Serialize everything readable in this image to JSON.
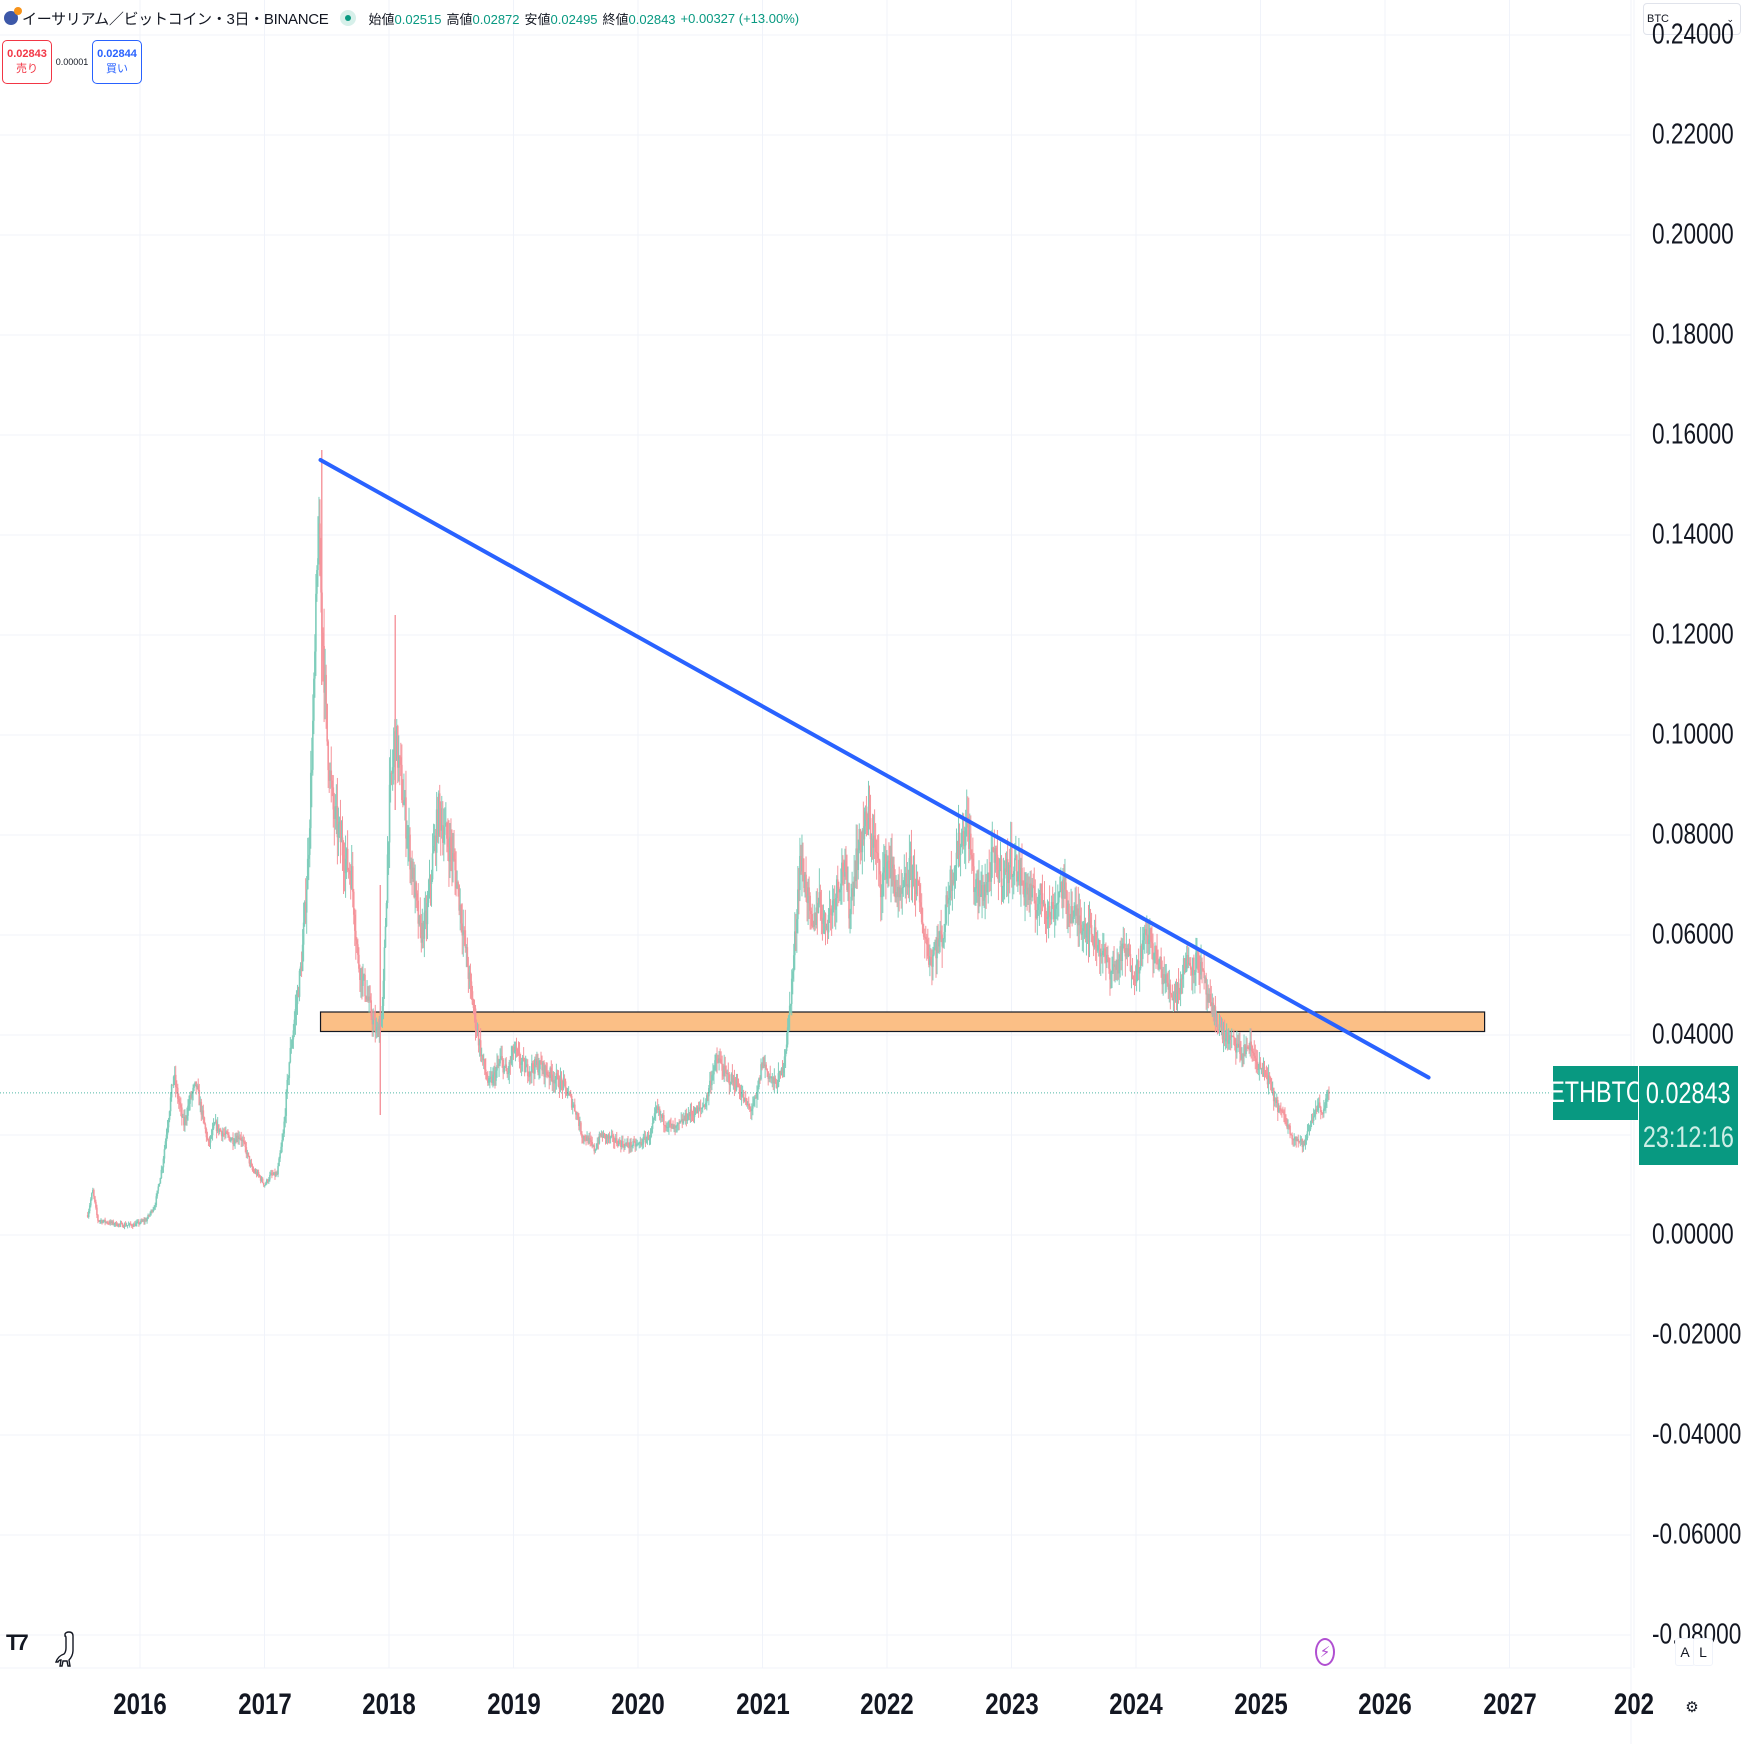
{
  "header": {
    "symbol_title": "イーサリアム／ビットコイン・3日・BINANCE",
    "ohlc": [
      {
        "label": "始値",
        "value": "0.02515"
      },
      {
        "label": "高値",
        "value": "0.02872"
      },
      {
        "label": "安値",
        "value": "0.02495"
      },
      {
        "label": "終値",
        "value": "0.02843"
      }
    ],
    "change": "+0.00327 (+13.00%)",
    "market_status_icon": "market-open-dot"
  },
  "trade": {
    "sell_price": "0.02843",
    "sell_label": "売り",
    "spread": "0.00001",
    "buy_price": "0.02844",
    "buy_label": "買い"
  },
  "currency_select": {
    "value": "BTC"
  },
  "price_tag": {
    "symbol": "ETHBTC",
    "price": "0.02843",
    "countdown": "23:12:16"
  },
  "bottom_controls": {
    "auto_label": "A",
    "log_label": "L"
  },
  "colors": {
    "up": "#089981",
    "down": "#f23645",
    "up_candle": "#7fcdbb",
    "down_candle": "#f5959c",
    "trendline": "#2962ff",
    "zone_fill": "#fbbf86",
    "grid": "#f0f3fa"
  },
  "chart_data": {
    "type": "candlestick",
    "title": "イーサリアム／ビットコイン・3日・BINANCE",
    "xlabel": "",
    "ylabel": "BTC",
    "ylim": [
      -0.08,
      0.24
    ],
    "yticks": [
      "0.24000",
      "0.22000",
      "0.20000",
      "0.18000",
      "0.16000",
      "0.14000",
      "0.12000",
      "0.10000",
      "0.08000",
      "0.06000",
      "0.04000",
      "0.02000",
      "0.00000",
      "-0.02000",
      "-0.04000",
      "-0.06000",
      "-0.08000"
    ],
    "xticks": [
      "2016",
      "2017",
      "2018",
      "2019",
      "2020",
      "2021",
      "2022",
      "2023",
      "2024",
      "2025",
      "2026",
      "2027",
      "202"
    ],
    "grid": true,
    "current_price": 0.02843,
    "series": [
      {
        "name": "ETHBTC",
        "points": [
          [
            2015.58,
            0.004
          ],
          [
            2015.62,
            0.009
          ],
          [
            2015.66,
            0.003
          ],
          [
            2015.75,
            0.0025
          ],
          [
            2015.85,
            0.002
          ],
          [
            2015.95,
            0.002
          ],
          [
            2016.05,
            0.003
          ],
          [
            2016.12,
            0.006
          ],
          [
            2016.18,
            0.014
          ],
          [
            2016.22,
            0.022
          ],
          [
            2016.27,
            0.032
          ],
          [
            2016.3,
            0.028
          ],
          [
            2016.35,
            0.022
          ],
          [
            2016.4,
            0.027
          ],
          [
            2016.45,
            0.03
          ],
          [
            2016.5,
            0.024
          ],
          [
            2016.55,
            0.018
          ],
          [
            2016.6,
            0.022
          ],
          [
            2016.68,
            0.02
          ],
          [
            2016.75,
            0.019
          ],
          [
            2016.8,
            0.02
          ],
          [
            2016.85,
            0.017
          ],
          [
            2016.9,
            0.013
          ],
          [
            2016.95,
            0.012
          ],
          [
            2017.0,
            0.01
          ],
          [
            2017.05,
            0.012
          ],
          [
            2017.1,
            0.012
          ],
          [
            2017.15,
            0.02
          ],
          [
            2017.2,
            0.035
          ],
          [
            2017.25,
            0.045
          ],
          [
            2017.3,
            0.055
          ],
          [
            2017.35,
            0.075
          ],
          [
            2017.4,
            0.11
          ],
          [
            2017.43,
            0.14
          ],
          [
            2017.46,
            0.125
          ],
          [
            2017.5,
            0.1
          ],
          [
            2017.55,
            0.085
          ],
          [
            2017.6,
            0.08
          ],
          [
            2017.65,
            0.075
          ],
          [
            2017.7,
            0.072
          ],
          [
            2017.75,
            0.055
          ],
          [
            2017.8,
            0.05
          ],
          [
            2017.85,
            0.045
          ],
          [
            2017.9,
            0.04
          ],
          [
            2017.95,
            0.045
          ],
          [
            2018.0,
            0.085
          ],
          [
            2018.05,
            0.1
          ],
          [
            2018.1,
            0.09
          ],
          [
            2018.15,
            0.08
          ],
          [
            2018.2,
            0.07
          ],
          [
            2018.25,
            0.06
          ],
          [
            2018.3,
            0.063
          ],
          [
            2018.35,
            0.075
          ],
          [
            2018.4,
            0.085
          ],
          [
            2018.45,
            0.08
          ],
          [
            2018.5,
            0.077
          ],
          [
            2018.55,
            0.07
          ],
          [
            2018.6,
            0.06
          ],
          [
            2018.65,
            0.05
          ],
          [
            2018.7,
            0.042
          ],
          [
            2018.75,
            0.035
          ],
          [
            2018.8,
            0.03
          ],
          [
            2018.85,
            0.032
          ],
          [
            2018.9,
            0.035
          ],
          [
            2018.95,
            0.032
          ],
          [
            2019.0,
            0.037
          ],
          [
            2019.05,
            0.035
          ],
          [
            2019.1,
            0.033
          ],
          [
            2019.2,
            0.034
          ],
          [
            2019.3,
            0.032
          ],
          [
            2019.4,
            0.03
          ],
          [
            2019.5,
            0.025
          ],
          [
            2019.55,
            0.02
          ],
          [
            2019.6,
            0.019
          ],
          [
            2019.65,
            0.017
          ],
          [
            2019.7,
            0.02
          ],
          [
            2019.8,
            0.019
          ],
          [
            2019.9,
            0.018
          ],
          [
            2020.0,
            0.018
          ],
          [
            2020.1,
            0.02
          ],
          [
            2020.15,
            0.025
          ],
          [
            2020.2,
            0.023
          ],
          [
            2020.3,
            0.021
          ],
          [
            2020.4,
            0.024
          ],
          [
            2020.5,
            0.025
          ],
          [
            2020.55,
            0.027
          ],
          [
            2020.6,
            0.033
          ],
          [
            2020.65,
            0.035
          ],
          [
            2020.7,
            0.032
          ],
          [
            2020.8,
            0.03
          ],
          [
            2020.85,
            0.027
          ],
          [
            2020.9,
            0.025
          ],
          [
            2020.95,
            0.027
          ],
          [
            2021.0,
            0.035
          ],
          [
            2021.05,
            0.032
          ],
          [
            2021.1,
            0.03
          ],
          [
            2021.15,
            0.032
          ],
          [
            2021.2,
            0.04
          ],
          [
            2021.25,
            0.055
          ],
          [
            2021.3,
            0.075
          ],
          [
            2021.35,
            0.07
          ],
          [
            2021.4,
            0.06
          ],
          [
            2021.45,
            0.068
          ],
          [
            2021.5,
            0.062
          ],
          [
            2021.55,
            0.065
          ],
          [
            2021.6,
            0.07
          ],
          [
            2021.65,
            0.074
          ],
          [
            2021.7,
            0.065
          ],
          [
            2021.75,
            0.075
          ],
          [
            2021.8,
            0.08
          ],
          [
            2021.85,
            0.083
          ],
          [
            2021.9,
            0.078
          ],
          [
            2021.95,
            0.07
          ],
          [
            2022.0,
            0.075
          ],
          [
            2022.05,
            0.072
          ],
          [
            2022.1,
            0.066
          ],
          [
            2022.15,
            0.07
          ],
          [
            2022.2,
            0.074
          ],
          [
            2022.25,
            0.068
          ],
          [
            2022.3,
            0.06
          ],
          [
            2022.35,
            0.055
          ],
          [
            2022.4,
            0.058
          ],
          [
            2022.45,
            0.06
          ],
          [
            2022.5,
            0.07
          ],
          [
            2022.55,
            0.075
          ],
          [
            2022.6,
            0.08
          ],
          [
            2022.65,
            0.082
          ],
          [
            2022.7,
            0.07
          ],
          [
            2022.75,
            0.068
          ],
          [
            2022.8,
            0.07
          ],
          [
            2022.85,
            0.075
          ],
          [
            2022.9,
            0.073
          ],
          [
            2022.95,
            0.072
          ],
          [
            2023.0,
            0.075
          ],
          [
            2023.05,
            0.073
          ],
          [
            2023.1,
            0.07
          ],
          [
            2023.15,
            0.068
          ],
          [
            2023.2,
            0.066
          ],
          [
            2023.25,
            0.068
          ],
          [
            2023.3,
            0.064
          ],
          [
            2023.35,
            0.066
          ],
          [
            2023.4,
            0.07
          ],
          [
            2023.45,
            0.066
          ],
          [
            2023.5,
            0.064
          ],
          [
            2023.55,
            0.063
          ],
          [
            2023.6,
            0.062
          ],
          [
            2023.65,
            0.06
          ],
          [
            2023.7,
            0.058
          ],
          [
            2023.75,
            0.055
          ],
          [
            2023.8,
            0.053
          ],
          [
            2023.85,
            0.054
          ],
          [
            2023.9,
            0.057
          ],
          [
            2023.95,
            0.055
          ],
          [
            2024.0,
            0.052
          ],
          [
            2024.05,
            0.058
          ],
          [
            2024.1,
            0.06
          ],
          [
            2024.15,
            0.056
          ],
          [
            2024.2,
            0.053
          ],
          [
            2024.25,
            0.05
          ],
          [
            2024.3,
            0.048
          ],
          [
            2024.35,
            0.05
          ],
          [
            2024.4,
            0.055
          ],
          [
            2024.45,
            0.054
          ],
          [
            2024.5,
            0.055
          ],
          [
            2024.55,
            0.05
          ],
          [
            2024.6,
            0.045
          ],
          [
            2024.65,
            0.043
          ],
          [
            2024.7,
            0.04
          ],
          [
            2024.75,
            0.039
          ],
          [
            2024.8,
            0.038
          ],
          [
            2024.85,
            0.036
          ],
          [
            2024.9,
            0.038
          ],
          [
            2024.95,
            0.036
          ],
          [
            2025.0,
            0.033
          ],
          [
            2025.05,
            0.032
          ],
          [
            2025.1,
            0.028
          ],
          [
            2025.15,
            0.025
          ],
          [
            2025.2,
            0.023
          ],
          [
            2025.25,
            0.02
          ],
          [
            2025.3,
            0.019
          ],
          [
            2025.35,
            0.018
          ],
          [
            2025.4,
            0.022
          ],
          [
            2025.45,
            0.026
          ],
          [
            2025.5,
            0.025
          ],
          [
            2025.55,
            0.0284
          ]
        ]
      }
    ],
    "annotations": [
      {
        "type": "trendline",
        "from": [
          2017.45,
          0.155
        ],
        "to": [
          2026.35,
          0.0315
        ],
        "color": "#2962ff"
      },
      {
        "type": "rectangle",
        "x": [
          2017.45,
          2026.8
        ],
        "y": [
          0.0407,
          0.0446
        ],
        "color": "#fbbf86"
      },
      {
        "type": "hline",
        "y": 0.02843,
        "label": "ETHBTC 0.02843"
      }
    ]
  }
}
